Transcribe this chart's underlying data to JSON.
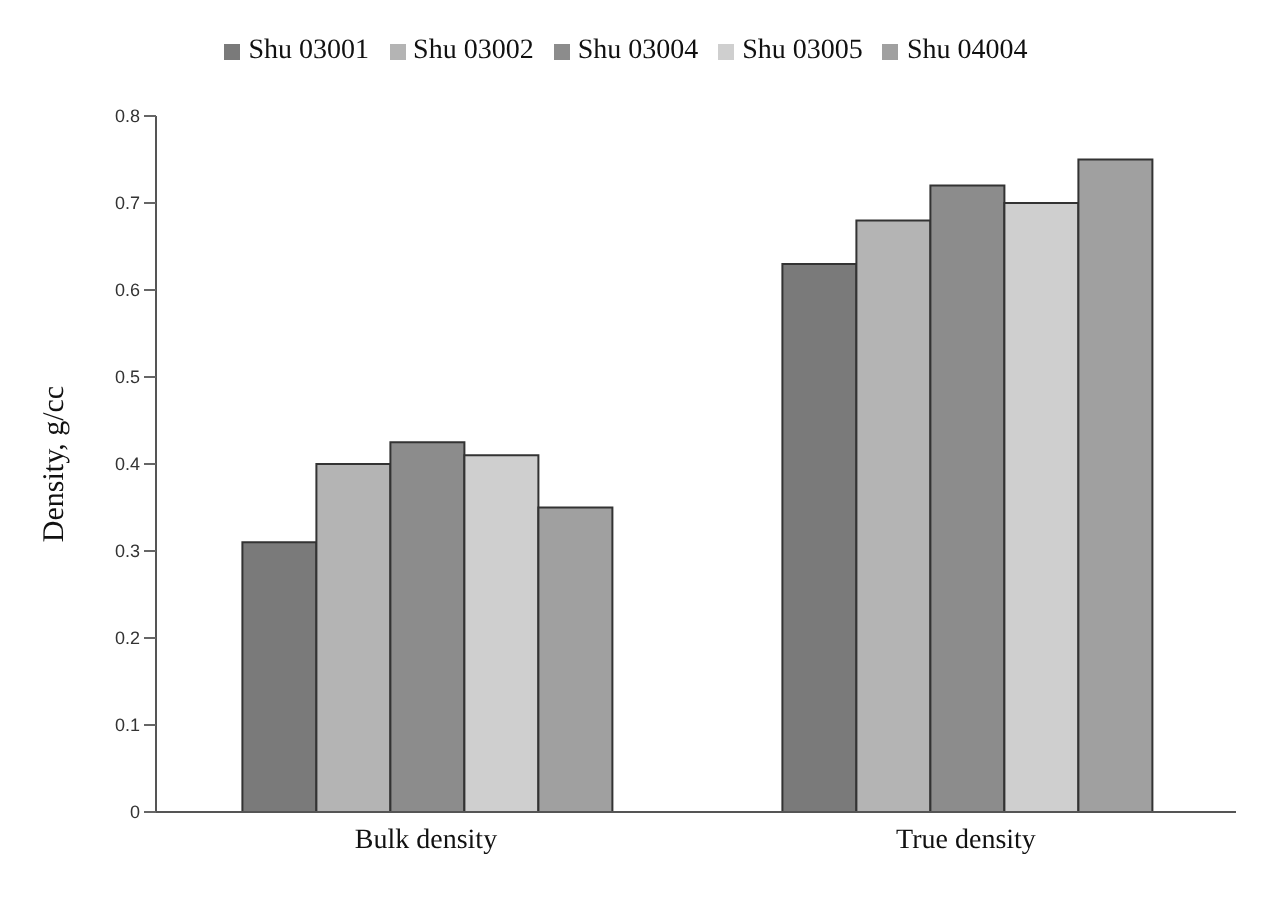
{
  "chart_data": {
    "type": "bar",
    "categories": [
      "Bulk density",
      "True density"
    ],
    "ylabel": "Density, g/cc",
    "ylim": [
      0,
      0.8
    ],
    "yticks": [
      0,
      0.1,
      0.2,
      0.3,
      0.4,
      0.5,
      0.6,
      0.7,
      0.8
    ],
    "grid": false,
    "legend": "top",
    "series": [
      {
        "name": "Shu 03001",
        "color": "#7a7a7a",
        "values": [
          0.31,
          0.63
        ]
      },
      {
        "name": "Shu 03002",
        "color": "#b4b4b4",
        "values": [
          0.4,
          0.68
        ]
      },
      {
        "name": "Shu 03004",
        "color": "#8c8c8c",
        "values": [
          0.425,
          0.72
        ]
      },
      {
        "name": "Shu 03005",
        "color": "#cfcfcf",
        "values": [
          0.41,
          0.7
        ]
      },
      {
        "name": "Shu 04004",
        "color": "#a0a0a0",
        "values": [
          0.35,
          0.75
        ]
      }
    ]
  }
}
